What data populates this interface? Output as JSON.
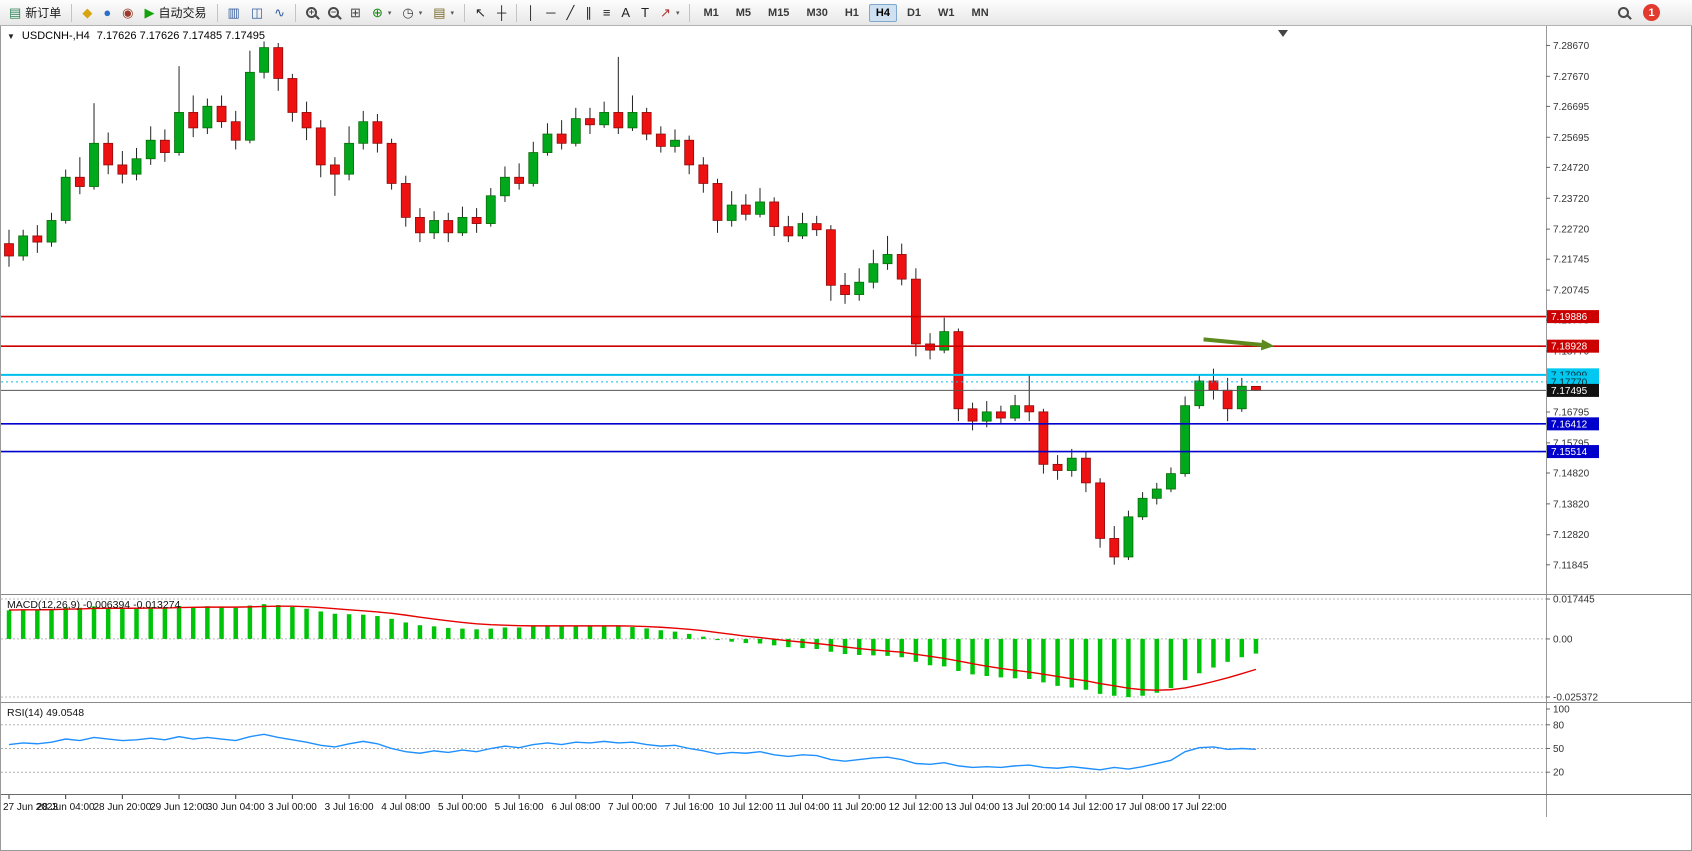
{
  "toolbar": {
    "caret_glyph": "▾",
    "timeframes": [
      "M1",
      "M5",
      "M15",
      "M30",
      "H1",
      "H4",
      "D1",
      "W1",
      "MN"
    ],
    "active_timeframe": "H4",
    "notification_count": "1",
    "items": [
      {
        "name": "new-order-button",
        "type": "button",
        "glyph": "▤",
        "glyph_color": "#2f855a",
        "label": "新订单"
      },
      {
        "name": "separator",
        "type": "sep"
      },
      {
        "name": "metaeditor-icon",
        "type": "icon",
        "glyph": "◆",
        "color": "#d9a411"
      },
      {
        "name": "community-icon",
        "type": "icon",
        "glyph": "●",
        "color": "#2a6fc9"
      },
      {
        "name": "market-depth-icon",
        "type": "icon",
        "glyph": "◉",
        "color": "#9c3a2b"
      },
      {
        "name": "autotrading-button",
        "type": "button",
        "glyph": "▶",
        "glyph_color": "#13a10e",
        "label": "自动交易"
      },
      {
        "name": "separator",
        "type": "sep"
      },
      {
        "name": "bar-chart-button",
        "type": "icon",
        "glyph": "▥",
        "color": "#355e9e"
      },
      {
        "name": "candlestick-chart-button",
        "type": "icon",
        "glyph": "◫",
        "color": "#355e9e"
      },
      {
        "name": "line-chart-button",
        "type": "icon",
        "glyph": "∿",
        "color": "#355e9e"
      },
      {
        "name": "separator",
        "type": "sep"
      },
      {
        "name": "zoom-in-button",
        "type": "mag",
        "sign": "+"
      },
      {
        "name": "zoom-out-button",
        "type": "mag",
        "sign": "−"
      },
      {
        "name": "tile-windows-button",
        "type": "icon",
        "glyph": "⊞",
        "color": "#444444"
      },
      {
        "name": "indicators-button",
        "type": "icon",
        "glyph": "⊕",
        "color": "#13840e",
        "caret": true
      },
      {
        "name": "periods-button",
        "type": "icon",
        "glyph": "◷",
        "color": "#444444",
        "caret": true
      },
      {
        "name": "templates-button",
        "type": "icon",
        "glyph": "▤",
        "color": "#7a6a2f",
        "caret": true
      },
      {
        "name": "separator",
        "type": "sep"
      },
      {
        "name": "cursor-button",
        "type": "icon",
        "glyph": "↖",
        "color": "#222222"
      },
      {
        "name": "crosshair-button",
        "type": "icon",
        "glyph": "┼",
        "color": "#222222"
      },
      {
        "name": "separator",
        "type": "sep"
      },
      {
        "name": "vertical-line-button",
        "type": "icon",
        "glyph": "│",
        "color": "#222222"
      },
      {
        "name": "horizontal-line-button",
        "type": "icon",
        "glyph": "─",
        "color": "#222222"
      },
      {
        "name": "trendline-button",
        "type": "icon",
        "glyph": "╱",
        "color": "#222222"
      },
      {
        "name": "channel-button",
        "type": "icon",
        "glyph": "∥",
        "color": "#222222"
      },
      {
        "name": "fibonacci-button",
        "type": "icon",
        "glyph": "≡",
        "color": "#222222"
      },
      {
        "name": "text-button",
        "type": "icon",
        "glyph": "A",
        "color": "#222222"
      },
      {
        "name": "label-button",
        "type": "icon",
        "glyph": "T",
        "color": "#222222"
      },
      {
        "name": "arrows-button",
        "type": "icon",
        "glyph": "↗",
        "color": "#b03030",
        "caret": true
      },
      {
        "name": "separator",
        "type": "sep"
      },
      {
        "name": "timeframes",
        "type": "timeframes"
      }
    ]
  },
  "chart": {
    "collapse_glyph": "▼",
    "symbol_period": "USDCNH-,H4",
    "ohlc": "7.17626 7.17626 7.17485 7.17495"
  },
  "chart_data": [
    {
      "type": "candlestick",
      "symbol": "USDCNH-",
      "timeframe": "H4",
      "price_max": 7.293,
      "price_min": 7.109,
      "up_color": "#00a91c",
      "down_color": "#ee1111",
      "up_border": "#066d06",
      "down_border": "#8e0b0b",
      "wick_color": "#222222",
      "bars_per_label": 4,
      "y_axis_labels": [
        "7.28670",
        "7.27670",
        "7.26695",
        "7.25695",
        "7.24720",
        "7.23720",
        "7.22720",
        "7.21745",
        "7.20745",
        "7.19770",
        "7.18770",
        "7.17770",
        "7.16795",
        "7.15795",
        "7.14820",
        "7.13820",
        "7.12820",
        "7.11845"
      ],
      "time_labels": [
        "27 Jun 2023",
        "28 Jun 04:00",
        "28 Jun 20:00",
        "29 Jun 12:00",
        "30 Jun 04:00",
        "3 Jul 00:00",
        "3 Jul 16:00",
        "4 Jul 08:00",
        "5 Jul 00:00",
        "5 Jul 16:00",
        "6 Jul 08:00",
        "7 Jul 00:00",
        "7 Jul 16:00",
        "10 Jul 12:00",
        "11 Jul 04:00",
        "11 Jul 20:00",
        "12 Jul 12:00",
        "13 Jul 04:00",
        "13 Jul 20:00",
        "14 Jul 12:00",
        "17 Jul 08:00",
        "17 Jul 22:00"
      ],
      "hlines": [
        {
          "price": 7.19886,
          "label": "7.19886",
          "color": "#cc0000",
          "width": 1.6,
          "style": "solid",
          "tag_bg": "#cc0000",
          "tag_text": "#ffffff"
        },
        {
          "price": 7.18928,
          "label": "7.18928",
          "color": "#cc0000",
          "width": 1.6,
          "style": "solid",
          "tag_bg": "#cc0000",
          "tag_text": "#ffffff"
        },
        {
          "price": 7.17999,
          "label": "7.17999",
          "color": "#00c0ef",
          "width": 2,
          "style": "solid",
          "tag_bg": "#00c8f0",
          "tag_text": "#002b36"
        },
        {
          "price": 7.1777,
          "label": "7.17770",
          "color": "#00c0ef",
          "width": 1,
          "style": "dotted",
          "tag_bg": "#00c8f0",
          "tag_text": "#002b36"
        },
        {
          "price": 7.17495,
          "label": "7.17495",
          "color": "#555555",
          "width": 1,
          "style": "solid",
          "tag_bg": "#111111",
          "tag_text": "#ffffff"
        },
        {
          "price": 7.16412,
          "label": "7.16412",
          "color": "#0000cc",
          "width": 1.6,
          "style": "solid",
          "tag_bg": "#0000cc",
          "tag_text": "#ffffff"
        },
        {
          "price": 7.15514,
          "label": "7.15514",
          "color": "#0000cc",
          "width": 1.6,
          "style": "solid",
          "tag_bg": "#0000cc",
          "tag_text": "#ffffff"
        }
      ],
      "annotation_arrow": {
        "from_bar": 84.3,
        "from_price": 7.1915,
        "to_bar": 89.3,
        "to_price": 7.1893,
        "color": "#5c8a1e"
      },
      "candles": [
        [
          7.2225,
          7.227,
          7.215,
          7.2185
        ],
        [
          7.2185,
          7.227,
          7.217,
          7.225
        ],
        [
          7.225,
          7.2285,
          7.2195,
          7.223
        ],
        [
          7.223,
          7.2325,
          7.2215,
          7.23
        ],
        [
          7.23,
          7.2465,
          7.229,
          7.244
        ],
        [
          7.244,
          7.2505,
          7.2385,
          7.241
        ],
        [
          7.241,
          7.268,
          7.24,
          7.255
        ],
        [
          7.255,
          7.2585,
          7.245,
          7.248
        ],
        [
          7.248,
          7.2525,
          7.242,
          7.245
        ],
        [
          7.245,
          7.2535,
          7.243,
          7.25
        ],
        [
          7.25,
          7.2605,
          7.248,
          7.256
        ],
        [
          7.256,
          7.2595,
          7.249,
          7.252
        ],
        [
          7.252,
          7.28,
          7.251,
          7.265
        ],
        [
          7.265,
          7.2705,
          7.257,
          7.26
        ],
        [
          7.26,
          7.2695,
          7.258,
          7.267
        ],
        [
          7.267,
          7.2705,
          7.26,
          7.262
        ],
        [
          7.262,
          7.2655,
          7.253,
          7.256
        ],
        [
          7.256,
          7.285,
          7.255,
          7.278
        ],
        [
          7.278,
          7.288,
          7.276,
          7.286
        ],
        [
          7.286,
          7.2875,
          7.272,
          7.276
        ],
        [
          7.276,
          7.2775,
          7.262,
          7.265
        ],
        [
          7.265,
          7.2685,
          7.256,
          7.26
        ],
        [
          7.26,
          7.2625,
          7.244,
          7.248
        ],
        [
          7.248,
          7.2505,
          7.238,
          7.245
        ],
        [
          7.245,
          7.2605,
          7.243,
          7.255
        ],
        [
          7.255,
          7.2655,
          7.253,
          7.262
        ],
        [
          7.262,
          7.2645,
          7.252,
          7.255
        ],
        [
          7.255,
          7.2565,
          7.24,
          7.242
        ],
        [
          7.242,
          7.2445,
          7.228,
          7.231
        ],
        [
          7.231,
          7.234,
          7.223,
          7.226
        ],
        [
          7.226,
          7.233,
          7.224,
          7.23
        ],
        [
          7.23,
          7.2325,
          7.223,
          7.226
        ],
        [
          7.226,
          7.2345,
          7.225,
          7.231
        ],
        [
          7.231,
          7.234,
          7.226,
          7.229
        ],
        [
          7.229,
          7.2405,
          7.228,
          7.238
        ],
        [
          7.238,
          7.2475,
          7.236,
          7.244
        ],
        [
          7.244,
          7.2485,
          7.24,
          7.242
        ],
        [
          7.242,
          7.2555,
          7.241,
          7.252
        ],
        [
          7.252,
          7.2615,
          7.251,
          7.258
        ],
        [
          7.258,
          7.2625,
          7.253,
          7.255
        ],
        [
          7.255,
          7.2665,
          7.254,
          7.263
        ],
        [
          7.263,
          7.2665,
          7.258,
          7.261
        ],
        [
          7.261,
          7.2685,
          7.26,
          7.265
        ],
        [
          7.265,
          7.283,
          7.258,
          7.26
        ],
        [
          7.26,
          7.2705,
          7.259,
          7.265
        ],
        [
          7.265,
          7.2665,
          7.256,
          7.258
        ],
        [
          7.258,
          7.2605,
          7.252,
          7.254
        ],
        [
          7.254,
          7.2595,
          7.252,
          7.256
        ],
        [
          7.256,
          7.2575,
          7.245,
          7.248
        ],
        [
          7.248,
          7.2505,
          7.239,
          7.242
        ],
        [
          7.242,
          7.2435,
          7.226,
          7.23
        ],
        [
          7.23,
          7.2395,
          7.228,
          7.235
        ],
        [
          7.235,
          7.2385,
          7.23,
          7.232
        ],
        [
          7.232,
          7.2405,
          7.231,
          7.236
        ],
        [
          7.236,
          7.2375,
          7.225,
          7.228
        ],
        [
          7.228,
          7.2315,
          7.223,
          7.225
        ],
        [
          7.225,
          7.2325,
          7.224,
          7.229
        ],
        [
          7.229,
          7.2315,
          7.225,
          7.227
        ],
        [
          7.227,
          7.2285,
          7.204,
          7.209
        ],
        [
          7.209,
          7.213,
          7.203,
          7.206
        ],
        [
          7.206,
          7.2145,
          7.204,
          7.21
        ],
        [
          7.21,
          7.2205,
          7.208,
          7.216
        ],
        [
          7.216,
          7.225,
          7.214,
          7.219
        ],
        [
          7.219,
          7.2225,
          7.209,
          7.211
        ],
        [
          7.211,
          7.2145,
          7.186,
          7.19
        ],
        [
          7.19,
          7.1935,
          7.185,
          7.188
        ],
        [
          7.188,
          7.1985,
          7.187,
          7.194
        ],
        [
          7.194,
          7.195,
          7.165,
          7.169
        ],
        [
          7.169,
          7.171,
          7.162,
          7.165
        ],
        [
          7.165,
          7.1715,
          7.163,
          7.168
        ],
        [
          7.168,
          7.17,
          7.164,
          7.166
        ],
        [
          7.166,
          7.1735,
          7.165,
          7.17
        ],
        [
          7.17,
          7.18,
          7.165,
          7.168
        ],
        [
          7.168,
          7.169,
          7.148,
          7.151
        ],
        [
          7.151,
          7.154,
          7.146,
          7.149
        ],
        [
          7.149,
          7.156,
          7.147,
          7.153
        ],
        [
          7.153,
          7.155,
          7.142,
          7.145
        ],
        [
          7.145,
          7.1465,
          7.124,
          7.127
        ],
        [
          7.127,
          7.131,
          7.1185,
          7.121
        ],
        [
          7.121,
          7.136,
          7.12,
          7.134
        ],
        [
          7.134,
          7.142,
          7.133,
          7.14
        ],
        [
          7.14,
          7.145,
          7.138,
          7.143
        ],
        [
          7.143,
          7.15,
          7.142,
          7.148
        ],
        [
          7.148,
          7.173,
          7.147,
          7.17
        ],
        [
          7.17,
          7.18,
          7.169,
          7.178
        ],
        [
          7.178,
          7.182,
          7.172,
          7.175
        ],
        [
          7.175,
          7.179,
          7.165,
          7.169
        ],
        [
          7.169,
          7.179,
          7.168,
          7.1763
        ],
        [
          7.17626,
          7.17626,
          7.17485,
          7.17495
        ]
      ]
    },
    {
      "type": "bar",
      "name": "MACD",
      "label": "MACD(12,26,9) -0.006394 -0.013274",
      "y_max": 0.017445,
      "y_min": -0.025372,
      "scale_labels": [
        "0.017445",
        "0.00",
        "-0.025372"
      ],
      "bar_color": "#00c40a",
      "signal_color": "#e60000",
      "values": [
        0.0125,
        0.0128,
        0.0124,
        0.013,
        0.0138,
        0.0136,
        0.0142,
        0.0138,
        0.0133,
        0.0135,
        0.0139,
        0.0136,
        0.0144,
        0.014,
        0.0143,
        0.014,
        0.0136,
        0.0146,
        0.0152,
        0.0148,
        0.014,
        0.0132,
        0.012,
        0.011,
        0.0108,
        0.0106,
        0.01,
        0.0088,
        0.0072,
        0.006,
        0.0055,
        0.0048,
        0.0045,
        0.0042,
        0.0045,
        0.005,
        0.005,
        0.0055,
        0.0058,
        0.0056,
        0.0058,
        0.0056,
        0.0058,
        0.0055,
        0.0052,
        0.0046,
        0.0038,
        0.0032,
        0.0022,
        0.001,
        -0.0005,
        -0.0012,
        -0.0018,
        -0.002,
        -0.0028,
        -0.0036,
        -0.004,
        -0.0044,
        -0.0056,
        -0.0066,
        -0.007,
        -0.0072,
        -0.0074,
        -0.008,
        -0.01,
        -0.0115,
        -0.012,
        -0.014,
        -0.0155,
        -0.0162,
        -0.0168,
        -0.0172,
        -0.0175,
        -0.019,
        -0.0205,
        -0.0212,
        -0.0222,
        -0.024,
        -0.0248,
        -0.0254,
        -0.0248,
        -0.0235,
        -0.0215,
        -0.018,
        -0.015,
        -0.0125,
        -0.01,
        -0.008,
        -0.0064
      ],
      "signal": [
        0.0126,
        0.0127,
        0.0127,
        0.0128,
        0.013,
        0.0131,
        0.0133,
        0.0134,
        0.0134,
        0.0134,
        0.0135,
        0.0135,
        0.0137,
        0.0138,
        0.0139,
        0.0139,
        0.0139,
        0.014,
        0.0142,
        0.0143,
        0.0143,
        0.0141,
        0.0137,
        0.0132,
        0.0127,
        0.0123,
        0.0118,
        0.0112,
        0.0104,
        0.0095,
        0.0087,
        0.0079,
        0.0072,
        0.0066,
        0.0062,
        0.006,
        0.0058,
        0.0057,
        0.0057,
        0.0057,
        0.0057,
        0.0057,
        0.0057,
        0.0057,
        0.0056,
        0.0054,
        0.0051,
        0.0047,
        0.0042,
        0.0036,
        0.0028,
        0.002,
        0.0012,
        0.0006,
        -0.0001,
        -0.0008,
        -0.0014,
        -0.002,
        -0.0027,
        -0.0035,
        -0.0042,
        -0.0048,
        -0.0053,
        -0.0058,
        -0.0067,
        -0.0076,
        -0.0085,
        -0.0096,
        -0.0108,
        -0.0119,
        -0.0129,
        -0.0137,
        -0.0145,
        -0.0154,
        -0.0164,
        -0.0174,
        -0.0183,
        -0.0195,
        -0.0205,
        -0.0215,
        -0.0222,
        -0.0224,
        -0.0222,
        -0.0214,
        -0.0201,
        -0.0186,
        -0.017,
        -0.0152,
        -0.0133
      ]
    },
    {
      "type": "line",
      "name": "RSI",
      "label": "RSI(14) 49.0548",
      "y_max": 100,
      "y_min": 0,
      "levels": [
        80,
        50,
        20
      ],
      "scale_labels": [
        "100",
        "80",
        "50",
        "20"
      ],
      "line_color": "#1e90ff",
      "values": [
        55,
        57,
        56,
        58,
        62,
        60,
        64,
        62,
        60,
        61,
        63,
        61,
        65,
        62,
        64,
        62,
        60,
        65,
        68,
        64,
        61,
        58,
        54,
        52,
        56,
        59,
        56,
        50,
        46,
        44,
        47,
        45,
        48,
        46,
        50,
        53,
        51,
        55,
        57,
        55,
        58,
        57,
        59,
        57,
        58,
        55,
        53,
        54,
        50,
        47,
        43,
        45,
        44,
        46,
        42,
        40,
        42,
        41,
        36,
        34,
        36,
        38,
        39,
        36,
        31,
        30,
        32,
        28,
        26,
        27,
        26,
        28,
        29,
        26,
        25,
        27,
        25,
        23,
        26,
        24,
        27,
        31,
        35,
        46,
        51,
        52,
        49,
        50,
        49
      ]
    }
  ]
}
